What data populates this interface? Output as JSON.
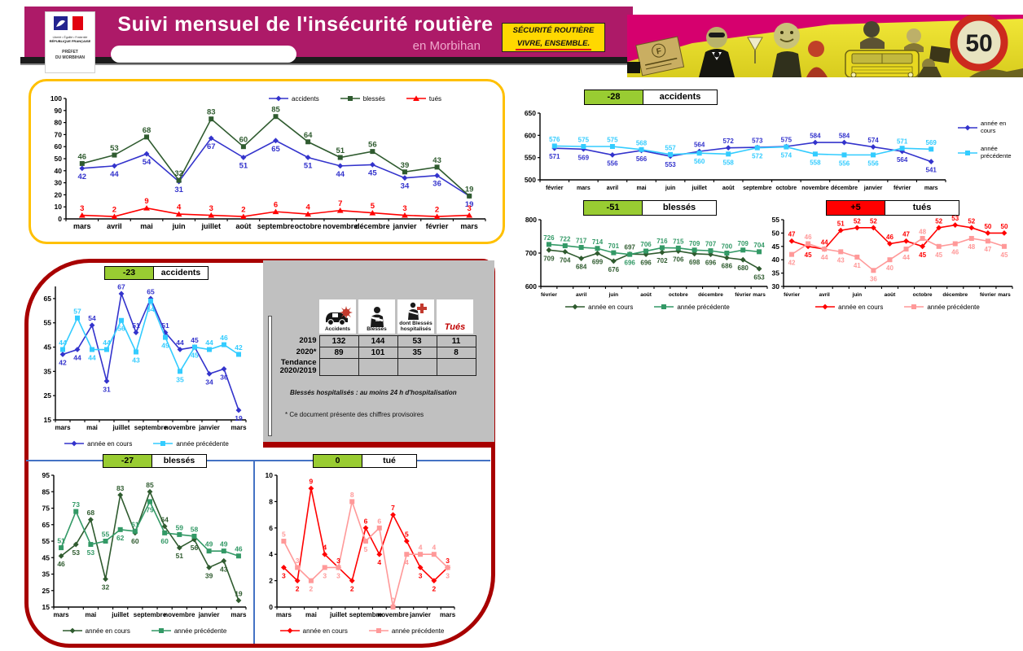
{
  "header": {
    "title": "Suivi mensuel de l'insécurité routière",
    "subtitle": "en Morbihan",
    "badge_line1": "SÉCURITÉ ROUTIÈRE",
    "badge_line2": "VIVRE, ENSEMBLE.",
    "logo_motto": "Liberté • Égalité • Fraternité",
    "logo_republic": "RÉPUBLIQUE FRANÇAISE",
    "logo_prefect": "PRÉFET\nDU MORBIHAN",
    "speed_sign": "50"
  },
  "summary": {
    "columns": [
      {
        "icon": "car-crash-icon",
        "caption": "Accidents"
      },
      {
        "icon": "injured-icon",
        "caption": "Blessés"
      },
      {
        "icon": "hospitalized-icon",
        "caption": "dont Blessés hospitalisés"
      },
      {
        "icon": "killed-icon",
        "caption": "Tués"
      }
    ],
    "rows": [
      {
        "label": "2019",
        "values": [
          "132",
          "144",
          "53",
          "11"
        ]
      },
      {
        "label": "2020*",
        "values": [
          "89",
          "101",
          "35",
          "8"
        ]
      },
      {
        "label": "Tendance 2020/2019",
        "values": [
          "",
          "",
          "",
          ""
        ]
      }
    ],
    "note1": "Blessés hospitalisés : au moins 24 h d'hospitalisation",
    "note2": "* Ce document présente des chiffres provisoires"
  },
  "chart_data": [
    {
      "id": "overview-mensuel",
      "type": "line",
      "categories": [
        "mars",
        "avril",
        "mai",
        "juin",
        "juillet",
        "août",
        "septembre",
        "octobre",
        "novembre",
        "décembre",
        "janvier",
        "février",
        "mars"
      ],
      "ylim": [
        0,
        100
      ],
      "ytick_step": 10,
      "xtick_every": 1,
      "series": [
        {
          "name": "accidents",
          "color": "#3333CC",
          "marker": "diamond",
          "label_pos": "below",
          "values": [
            42,
            44,
            54,
            31,
            67,
            51,
            65,
            51,
            44,
            45,
            34,
            36,
            19
          ]
        },
        {
          "name": "blessés",
          "color": "#2F5B2F",
          "marker": "square",
          "label_pos": "above",
          "values": [
            46,
            53,
            68,
            32,
            83,
            60,
            85,
            64,
            51,
            56,
            39,
            43,
            19
          ]
        },
        {
          "name": "tués",
          "color": "#FF0000",
          "marker": "triangle",
          "label_pos": "above",
          "values": [
            3,
            2,
            9,
            4,
            3,
            2,
            6,
            4,
            7,
            5,
            3,
            2,
            3
          ]
        }
      ]
    },
    {
      "id": "accidents-cumul",
      "type": "line",
      "title_delta": "-28",
      "title_label": "accidents",
      "delta_color": "#99CC32",
      "categories": [
        "février",
        "mars",
        "avril",
        "mai",
        "juin",
        "juillet",
        "août",
        "septembre",
        "octobre",
        "novembre",
        "décembre",
        "janvier",
        "février",
        "mars"
      ],
      "ylim": [
        500,
        650
      ],
      "ytick_step": 50,
      "xtick_every": 1,
      "label_rule": "higher-above",
      "series": [
        {
          "name": "année en cours",
          "color": "#3333CC",
          "marker": "diamond",
          "values": [
            571,
            569,
            556,
            566,
            553,
            564,
            572,
            573,
            575,
            584,
            584,
            574,
            564,
            541
          ]
        },
        {
          "name": "année précédente",
          "color": "#33CCFF",
          "marker": "square",
          "values": [
            576,
            575,
            575,
            568,
            557,
            560,
            558,
            572,
            574,
            558,
            556,
            556,
            571,
            569
          ]
        }
      ]
    },
    {
      "id": "blesses-cumul",
      "type": "line",
      "title_delta": "-51",
      "title_label": "blessés",
      "delta_color": "#99CC32",
      "categories": [
        "février",
        "mars",
        "avril",
        "mai",
        "juin",
        "juillet",
        "août",
        "septembre",
        "octobre",
        "novembre",
        "décembre",
        "janvier",
        "février",
        "mars"
      ],
      "ylim": [
        600,
        800
      ],
      "ytick_step": 100,
      "xtick_every": 2,
      "label_rule": "higher-above",
      "series": [
        {
          "name": "année en cours",
          "color": "#2F5B2F",
          "marker": "diamond",
          "values": [
            709,
            704,
            684,
            699,
            676,
            697,
            696,
            702,
            706,
            698,
            696,
            686,
            680,
            653
          ]
        },
        {
          "name": "année précédente",
          "color": "#339966",
          "marker": "square",
          "values": [
            726,
            722,
            717,
            714,
            701,
            696,
            706,
            716,
            715,
            709,
            707,
            700,
            709,
            704
          ]
        }
      ]
    },
    {
      "id": "tues-cumul",
      "type": "line",
      "title_delta": "+5",
      "title_label": "tués",
      "delta_color": "#FF0000",
      "categories": [
        "février",
        "mars",
        "avril",
        "mai",
        "juin",
        "juillet",
        "août",
        "septembre",
        "octobre",
        "novembre",
        "décembre",
        "janvier",
        "février",
        "mars"
      ],
      "ylim": [
        30,
        55
      ],
      "ytick_step": 5,
      "xtick_every": 2,
      "label_rule": "higher-above",
      "series": [
        {
          "name": "année en cours",
          "color": "#FF0000",
          "marker": "diamond",
          "values": [
            47,
            45,
            44,
            51,
            52,
            52,
            46,
            47,
            45,
            52,
            53,
            52,
            50,
            50
          ]
        },
        {
          "name": "année précédente",
          "color": "#FF9999",
          "marker": "square",
          "values": [
            42,
            46,
            44,
            43,
            41,
            36,
            40,
            44,
            48,
            45,
            46,
            48,
            47,
            45
          ]
        }
      ]
    },
    {
      "id": "accidents-mensuel",
      "type": "line",
      "title_delta": "-23",
      "title_label": "accidents",
      "delta_color": "#99CC32",
      "categories": [
        "mars",
        "avril",
        "mai",
        "juin",
        "juillet",
        "août",
        "septembre",
        "octobre",
        "novembre",
        "décembre",
        "janvier",
        "février",
        "mars"
      ],
      "ylim": [
        15,
        70
      ],
      "ytick_step": 10,
      "ytick_max": 65,
      "xtick_every": 2,
      "label_rule": "higher-above",
      "series": [
        {
          "name": "année en cours",
          "color": "#3333CC",
          "marker": "diamond",
          "values": [
            42,
            44,
            54,
            31,
            67,
            51,
            65,
            51,
            44,
            45,
            34,
            36,
            19
          ]
        },
        {
          "name": "année précédente",
          "color": "#33CCFF",
          "marker": "square",
          "values": [
            44,
            57,
            44,
            44,
            56,
            43,
            64,
            49,
            35,
            45,
            44,
            46,
            42
          ]
        }
      ]
    },
    {
      "id": "blesses-mensuel",
      "type": "line",
      "title_delta": "-27",
      "title_label": "blessés",
      "delta_color": "#99CC32",
      "categories": [
        "mars",
        "avril",
        "mai",
        "juin",
        "juillet",
        "août",
        "septembre",
        "octobre",
        "novembre",
        "décembre",
        "janvier",
        "février",
        "mars"
      ],
      "ylim": [
        15,
        95
      ],
      "ytick_step": 10,
      "xtick_every": 2,
      "label_rule": "higher-above",
      "series": [
        {
          "name": "année en cours",
          "color": "#2F5B2F",
          "marker": "diamond",
          "values": [
            46,
            53,
            68,
            32,
            83,
            60,
            85,
            64,
            51,
            56,
            39,
            43,
            19
          ]
        },
        {
          "name": "année précédente",
          "color": "#339966",
          "marker": "square",
          "values": [
            51,
            73,
            53,
            55,
            62,
            61,
            79,
            60,
            59,
            58,
            49,
            49,
            46
          ]
        }
      ]
    },
    {
      "id": "tues-mensuel",
      "type": "line",
      "title_delta": "0",
      "title_label": "tué",
      "delta_color": "#99CC32",
      "categories": [
        "mars",
        "avril",
        "mai",
        "juin",
        "juillet",
        "août",
        "septembre",
        "octobre",
        "novembre",
        "décembre",
        "janvier",
        "février",
        "mars"
      ],
      "ylim": [
        0,
        10
      ],
      "ytick_step": 2,
      "xtick_every": 2,
      "label_rule": "higher-above",
      "series": [
        {
          "name": "année en cours",
          "color": "#FF0000",
          "marker": "diamond",
          "values": [
            3,
            2,
            9,
            4,
            3,
            2,
            6,
            4,
            7,
            5,
            3,
            2,
            3
          ]
        },
        {
          "name": "année précédente",
          "color": "#FF9999",
          "marker": "square",
          "values": [
            5,
            3,
            2,
            3,
            3,
            8,
            5,
            6,
            0,
            4,
            4,
            4,
            3
          ]
        }
      ]
    }
  ]
}
